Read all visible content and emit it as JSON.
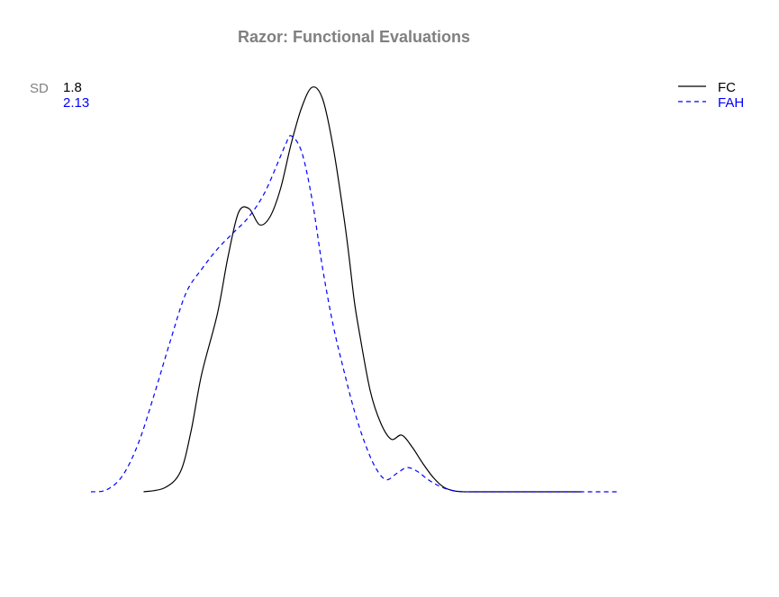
{
  "chart_data": {
    "type": "line",
    "title": "Razor: Functional Evaluations",
    "xlabel": "",
    "ylabel": "",
    "axes_shown": false,
    "grid": false,
    "legend_position": "top-right",
    "sd_label": "SD",
    "x_domain": [
      0,
      100
    ],
    "y_domain": [
      0,
      1
    ],
    "series": [
      {
        "name": "FC",
        "color": "#000000",
        "line_style": "solid",
        "sd": "1.8",
        "x": [
          10,
          14,
          17,
          19,
          21,
          24,
          26,
          28,
          30,
          32,
          34,
          36,
          38,
          40,
          42,
          44,
          46,
          48,
          49,
          50,
          51,
          53,
          55,
          57,
          59,
          61,
          63,
          65,
          67,
          69,
          71,
          72,
          74,
          76,
          78,
          80,
          84,
          88,
          93
        ],
        "y": [
          0,
          0.01,
          0.05,
          0.15,
          0.29,
          0.44,
          0.58,
          0.69,
          0.7,
          0.66,
          0.68,
          0.75,
          0.86,
          0.95,
          1.0,
          0.97,
          0.85,
          0.68,
          0.58,
          0.47,
          0.39,
          0.25,
          0.17,
          0.13,
          0.14,
          0.11,
          0.07,
          0.035,
          0.011,
          0.002,
          0.0,
          0.0,
          0.0,
          0.0,
          0.0,
          0.0,
          0.0,
          0.0,
          0.0
        ]
      },
      {
        "name": "FAH",
        "color": "#0000ff",
        "line_style": "dashed",
        "sd": "2.13",
        "x": [
          0,
          3,
          6,
          9,
          12,
          15,
          18,
          21,
          24,
          27,
          30,
          33,
          36,
          37,
          38,
          40,
          42,
          44,
          46,
          48,
          50,
          52,
          54,
          56,
          58,
          60,
          62,
          64,
          66,
          68,
          70,
          72,
          74,
          76,
          78,
          80,
          82,
          85,
          88,
          90,
          92,
          95,
          98,
          100
        ],
        "y": [
          0,
          0.005,
          0.04,
          0.12,
          0.24,
          0.37,
          0.49,
          0.55,
          0.6,
          0.64,
          0.68,
          0.74,
          0.83,
          0.86,
          0.88,
          0.84,
          0.72,
          0.55,
          0.41,
          0.3,
          0.2,
          0.12,
          0.06,
          0.03,
          0.045,
          0.06,
          0.05,
          0.03,
          0.015,
          0.005,
          0.001,
          0.0,
          0.0,
          0.0,
          0.0,
          0.0,
          0.0,
          0.0,
          0.0,
          0.0,
          0.0,
          0.0,
          0.0,
          0.0
        ]
      }
    ]
  }
}
